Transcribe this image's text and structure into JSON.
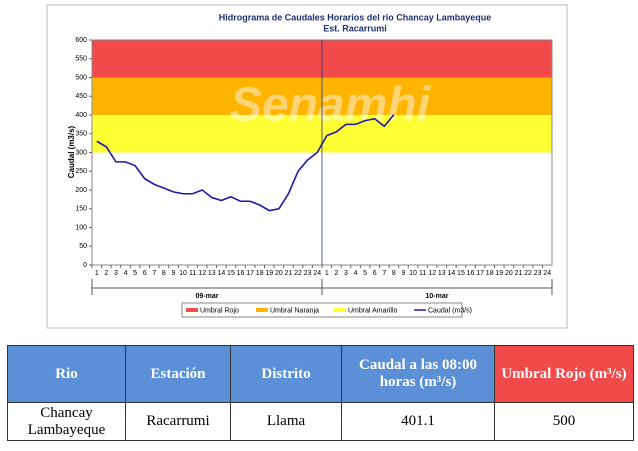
{
  "chart_data": {
    "type": "line",
    "title": "Hidrograma de Caudales Horarios del rio Chancay Lambayeque",
    "subtitle": "Est. Racarrumi",
    "watermark": "Senamhi",
    "ylabel": "Caudal (m3/s)",
    "categories": [
      "1",
      "2",
      "3",
      "4",
      "5",
      "6",
      "7",
      "8",
      "9",
      "10",
      "11",
      "12",
      "13",
      "14",
      "15",
      "16",
      "17",
      "18",
      "19",
      "20",
      "21",
      "22",
      "23",
      "24",
      "1",
      "2",
      "3",
      "4",
      "5",
      "6",
      "7",
      "8",
      "9",
      "10",
      "11",
      "12",
      "13",
      "14",
      "15",
      "16",
      "17",
      "18",
      "19",
      "20",
      "21",
      "22",
      "23",
      "24"
    ],
    "x_groups": [
      "09-mar",
      "10-mar"
    ],
    "ylim": [
      0,
      600
    ],
    "yticks": [
      0,
      50,
      100,
      150,
      200,
      250,
      300,
      350,
      400,
      450,
      500,
      550,
      600
    ],
    "bands": [
      {
        "name": "Umbral Rojo",
        "color": "#f24a4a",
        "value": 500
      },
      {
        "name": "Umbral Naranja",
        "color": "#ffb400",
        "value": 400
      },
      {
        "name": "Umbral Amarillo",
        "color": "#ffff33",
        "value": 300
      }
    ],
    "series": [
      {
        "name": "Caudal (m3/s)",
        "color": "#1a1aa6",
        "values": [
          330,
          315,
          275,
          275,
          265,
          230,
          215,
          205,
          195,
          190,
          190,
          200,
          180,
          172,
          182,
          170,
          170,
          160,
          145,
          150,
          190,
          250,
          280,
          300,
          345,
          355,
          375,
          375,
          385,
          390,
          370,
          401.1,
          null,
          null,
          null,
          null,
          null,
          null,
          null,
          null,
          null,
          null,
          null,
          null,
          null,
          null,
          null,
          null
        ]
      }
    ]
  },
  "table": {
    "header": [
      "Rio",
      "Estación",
      "Distrito",
      "Caudal a las 08:00 horas (m³/s)",
      "Umbral Rojo (m³/s)"
    ],
    "rows": [
      [
        "Chancay Lambayeque",
        "Racarrumi",
        "Llama",
        401.1,
        500
      ]
    ]
  }
}
